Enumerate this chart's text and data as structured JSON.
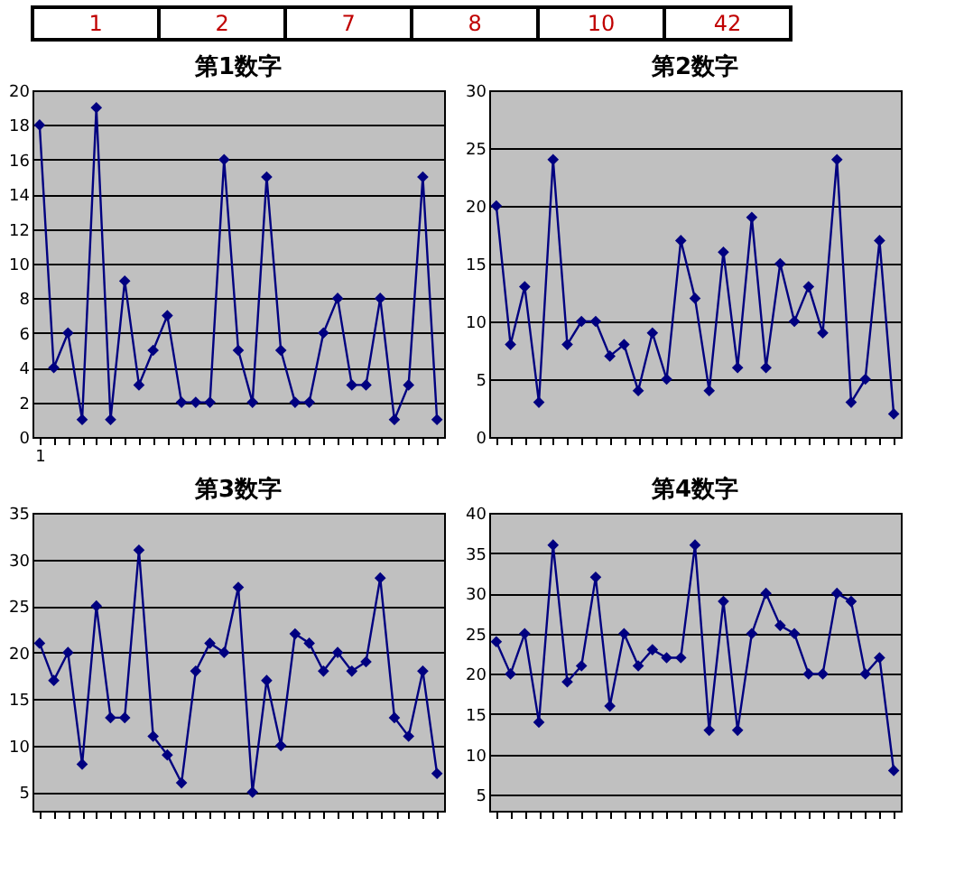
{
  "chart_data": [
    {
      "type": "other",
      "annotations": [
        "1",
        "2",
        "7",
        "8",
        "10",
        "42"
      ],
      "color": "#c00000"
    },
    {
      "type": "line",
      "title": "第1数字",
      "categories": [
        "1",
        null,
        null,
        null,
        null,
        null,
        null,
        null,
        null,
        null,
        null,
        null,
        null,
        null,
        null,
        null,
        null,
        null,
        null,
        null,
        null,
        null,
        null,
        null,
        null,
        null,
        null,
        null,
        null
      ],
      "series": [
        {
          "color": "#000080",
          "values": [
            18,
            4,
            6,
            1,
            19,
            1,
            9,
            3,
            5,
            7,
            2,
            2,
            2,
            16,
            5,
            2,
            15,
            5,
            2,
            2,
            6,
            8,
            3,
            3,
            8,
            1,
            3,
            15,
            1
          ]
        }
      ],
      "ylim": [
        0,
        20
      ],
      "yticks": [
        0,
        2,
        4,
        6,
        8,
        10,
        12,
        14,
        16,
        18,
        20
      ],
      "grid": "y",
      "marker": "diamond",
      "line_style": "solid",
      "legend": false
    },
    {
      "type": "line",
      "title": "第2数字",
      "categories": [
        null,
        null,
        null,
        null,
        null,
        null,
        null,
        null,
        null,
        null,
        null,
        null,
        null,
        null,
        null,
        null,
        null,
        null,
        null,
        null,
        null,
        null,
        null,
        null,
        null,
        null,
        null,
        null,
        null
      ],
      "series": [
        {
          "color": "#000080",
          "values": [
            20,
            8,
            13,
            3,
            24,
            8,
            10,
            10,
            7,
            8,
            4,
            9,
            5,
            17,
            12,
            4,
            16,
            6,
            19,
            6,
            15,
            10,
            13,
            9,
            24,
            3,
            5,
            17,
            2
          ]
        }
      ],
      "ylim": [
        0,
        30
      ],
      "yticks": [
        0,
        5,
        10,
        15,
        20,
        25,
        30
      ],
      "grid": "y",
      "marker": "diamond",
      "line_style": "solid",
      "legend": false,
      "tick_labels": "y"
    },
    {
      "type": "line",
      "title": "第3数字",
      "categories": [
        null,
        null,
        null,
        null,
        null,
        null,
        null,
        null,
        null,
        null,
        null,
        null,
        null,
        null,
        null,
        null,
        null,
        null,
        null,
        null,
        null,
        null,
        null,
        null,
        null,
        null,
        null,
        null,
        null
      ],
      "series": [
        {
          "color": "#000080",
          "values": [
            21,
            17,
            20,
            8,
            25,
            13,
            13,
            31,
            11,
            9,
            6,
            18,
            21,
            20,
            27,
            5,
            17,
            10,
            22,
            21,
            18,
            20,
            18,
            19,
            28,
            13,
            11,
            18,
            7
          ]
        }
      ],
      "ylim": [
        3,
        35
      ],
      "yticks": [
        5,
        10,
        15,
        20,
        25,
        30,
        35
      ],
      "grid": "y",
      "marker": "diamond",
      "line_style": "solid",
      "legend": false,
      "tick_labels": "y"
    },
    {
      "type": "line",
      "title": "第4数字",
      "categories": [
        null,
        null,
        null,
        null,
        null,
        null,
        null,
        null,
        null,
        null,
        null,
        null,
        null,
        null,
        null,
        null,
        null,
        null,
        null,
        null,
        null,
        null,
        null,
        null,
        null,
        null,
        null,
        null,
        null
      ],
      "series": [
        {
          "color": "#000080",
          "values": [
            24,
            20,
            25,
            14,
            36,
            19,
            21,
            32,
            16,
            25,
            21,
            23,
            22,
            22,
            36,
            13,
            29,
            13,
            25,
            30,
            26,
            25,
            20,
            20,
            30,
            29,
            20,
            22,
            8
          ]
        }
      ],
      "ylim": [
        3,
        40
      ],
      "yticks": [
        5,
        10,
        15,
        20,
        25,
        30,
        35,
        40
      ],
      "grid": "y",
      "marker": "diamond",
      "line_style": "solid",
      "legend": false,
      "tick_labels": "y"
    }
  ]
}
